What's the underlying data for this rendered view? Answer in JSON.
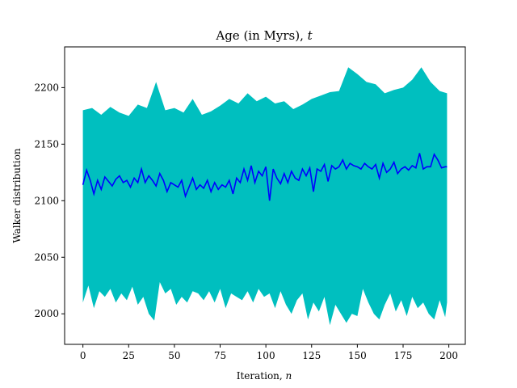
{
  "chart_data": {
    "type": "area",
    "title": "Age (in Myrs), ",
    "title_var": "t",
    "xlabel": "Iteration, ",
    "xlabel_var": "n",
    "ylabel": "Walker distribution",
    "xlim": [
      -10,
      209
    ],
    "ylim": [
      1973,
      2236
    ],
    "xticks": [
      0,
      25,
      50,
      75,
      100,
      125,
      150,
      175,
      200
    ],
    "yticks": [
      2000,
      2050,
      2100,
      2150,
      2200
    ],
    "grid": false,
    "colors": {
      "band": "#00bfbf",
      "mean": "#0000ff"
    },
    "series": [
      {
        "role": "upper-bound",
        "x": [
          0,
          5,
          10,
          15,
          20,
          25,
          30,
          35,
          40,
          45,
          50,
          55,
          60,
          65,
          70,
          75,
          80,
          85,
          90,
          95,
          100,
          105,
          110,
          115,
          120,
          125,
          130,
          135,
          140,
          145,
          150,
          155,
          160,
          165,
          170,
          175,
          180,
          185,
          190,
          195,
          199
        ],
        "values": [
          2180,
          2182,
          2176,
          2183,
          2178,
          2175,
          2185,
          2182,
          2205,
          2180,
          2182,
          2178,
          2190,
          2176,
          2179,
          2184,
          2190,
          2186,
          2195,
          2188,
          2192,
          2186,
          2188,
          2181,
          2185,
          2190,
          2193,
          2196,
          2197,
          2218,
          2212,
          2205,
          2203,
          2195,
          2198,
          2200,
          2207,
          2218,
          2205,
          2197,
          2195
        ]
      },
      {
        "role": "mean",
        "x": [
          0,
          2,
          4,
          6,
          8,
          10,
          12,
          14,
          16,
          18,
          20,
          22,
          24,
          26,
          28,
          30,
          32,
          34,
          36,
          38,
          40,
          42,
          44,
          46,
          48,
          50,
          52,
          54,
          56,
          58,
          60,
          62,
          64,
          66,
          68,
          70,
          72,
          74,
          76,
          78,
          80,
          82,
          84,
          86,
          88,
          90,
          92,
          94,
          96,
          98,
          100,
          102,
          104,
          106,
          108,
          110,
          112,
          114,
          116,
          118,
          120,
          122,
          124,
          126,
          128,
          130,
          132,
          134,
          136,
          138,
          140,
          142,
          144,
          146,
          148,
          150,
          152,
          154,
          156,
          158,
          160,
          162,
          164,
          166,
          168,
          170,
          172,
          174,
          176,
          178,
          180,
          182,
          184,
          186,
          188,
          190,
          192,
          194,
          196,
          198,
          199
        ],
        "values": [
          2114,
          2127,
          2118,
          2106,
          2118,
          2110,
          2121,
          2117,
          2113,
          2119,
          2122,
          2116,
          2118,
          2112,
          2120,
          2116,
          2128,
          2116,
          2122,
          2118,
          2113,
          2124,
          2118,
          2108,
          2116,
          2114,
          2112,
          2118,
          2104,
          2112,
          2120,
          2110,
          2114,
          2111,
          2118,
          2108,
          2116,
          2110,
          2114,
          2112,
          2118,
          2106,
          2120,
          2116,
          2128,
          2118,
          2131,
          2116,
          2126,
          2122,
          2130,
          2100,
          2128,
          2120,
          2115,
          2124,
          2116,
          2126,
          2120,
          2118,
          2128,
          2122,
          2129,
          2108,
          2128,
          2126,
          2132,
          2117,
          2131,
          2128,
          2130,
          2136,
          2128,
          2133,
          2131,
          2130,
          2128,
          2133,
          2130,
          2128,
          2132,
          2120,
          2133,
          2125,
          2128,
          2134,
          2124,
          2128,
          2130,
          2127,
          2131,
          2129,
          2142,
          2128,
          2130,
          2130,
          2141,
          2136,
          2129,
          2130,
          2130
        ]
      },
      {
        "role": "lower-bound",
        "x": [
          0,
          3,
          6,
          9,
          12,
          15,
          18,
          21,
          24,
          27,
          30,
          33,
          36,
          39,
          42,
          45,
          48,
          51,
          54,
          57,
          60,
          63,
          66,
          69,
          72,
          75,
          78,
          81,
          84,
          87,
          90,
          93,
          96,
          99,
          102,
          105,
          108,
          111,
          114,
          117,
          120,
          123,
          126,
          129,
          132,
          135,
          138,
          141,
          144,
          147,
          150,
          153,
          156,
          159,
          162,
          165,
          168,
          171,
          174,
          177,
          180,
          183,
          186,
          189,
          192,
          195,
          198,
          199
        ],
        "values": [
          2010,
          2025,
          2005,
          2020,
          2015,
          2022,
          2010,
          2018,
          2012,
          2024,
          2008,
          2015,
          2000,
          1994,
          2028,
          2018,
          2022,
          2008,
          2015,
          2010,
          2020,
          2018,
          2012,
          2020,
          2010,
          2022,
          2005,
          2018,
          2015,
          2012,
          2020,
          2010,
          2022,
          2015,
          2018,
          2005,
          2020,
          2008,
          2000,
          2012,
          2018,
          1995,
          2010,
          2002,
          2015,
          1990,
          2008,
          2000,
          1992,
          2000,
          1998,
          2022,
          2010,
          2000,
          1995,
          2008,
          2018,
          2002,
          2012,
          1998,
          2015,
          2005,
          2010,
          2000,
          1995,
          2012,
          1997,
          2010
        ]
      }
    ]
  }
}
